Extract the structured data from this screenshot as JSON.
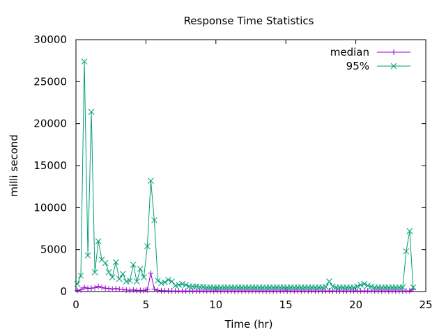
{
  "chart_data": {
    "type": "line",
    "title": "Response Time Statistics",
    "xlabel": "Time (hr)",
    "ylabel": "milli second",
    "xlim": [
      0,
      25
    ],
    "ylim": [
      0,
      30000
    ],
    "xticks": [
      0,
      5,
      10,
      15,
      20,
      25
    ],
    "yticks": [
      0,
      5000,
      10000,
      15000,
      20000,
      25000,
      30000
    ],
    "grid": false,
    "legend": "top-right",
    "series": [
      {
        "name": "median",
        "color": "#9400d3",
        "marker": "plus",
        "points": [
          [
            0.1,
            120
          ],
          [
            0.35,
            200
          ],
          [
            0.6,
            500
          ],
          [
            0.85,
            380
          ],
          [
            1.1,
            400
          ],
          [
            1.35,
            450
          ],
          [
            1.6,
            600
          ],
          [
            1.85,
            480
          ],
          [
            2.1,
            400
          ],
          [
            2.35,
            350
          ],
          [
            2.6,
            300
          ],
          [
            2.85,
            350
          ],
          [
            3.1,
            280
          ],
          [
            3.35,
            250
          ],
          [
            3.6,
            180
          ],
          [
            3.85,
            150
          ],
          [
            4.1,
            200
          ],
          [
            4.35,
            120
          ],
          [
            4.6,
            150
          ],
          [
            4.85,
            120
          ],
          [
            5.1,
            200
          ],
          [
            5.35,
            2200
          ],
          [
            5.6,
            300
          ],
          [
            5.85,
            150
          ],
          [
            6.1,
            100
          ],
          [
            6.35,
            90
          ],
          [
            6.6,
            80
          ],
          [
            6.85,
            70
          ],
          [
            7.1,
            60
          ],
          [
            7.35,
            60
          ],
          [
            7.6,
            60
          ],
          [
            7.85,
            60
          ],
          [
            8.1,
            60
          ],
          [
            8.35,
            60
          ],
          [
            8.6,
            60
          ],
          [
            8.85,
            60
          ],
          [
            9.1,
            60
          ],
          [
            9.35,
            60
          ],
          [
            9.6,
            60
          ],
          [
            9.85,
            60
          ],
          [
            10.1,
            60
          ],
          [
            10.35,
            60
          ],
          [
            10.6,
            60
          ],
          [
            10.85,
            60
          ],
          [
            11.1,
            60
          ],
          [
            11.35,
            60
          ],
          [
            11.6,
            60
          ],
          [
            11.85,
            60
          ],
          [
            12.1,
            60
          ],
          [
            12.35,
            60
          ],
          [
            12.6,
            60
          ],
          [
            12.85,
            60
          ],
          [
            13.1,
            60
          ],
          [
            13.35,
            60
          ],
          [
            13.6,
            60
          ],
          [
            13.85,
            60
          ],
          [
            14.1,
            60
          ],
          [
            14.35,
            60
          ],
          [
            14.6,
            60
          ],
          [
            14.85,
            60
          ],
          [
            15.1,
            60
          ],
          [
            15.35,
            60
          ],
          [
            15.6,
            60
          ],
          [
            15.85,
            60
          ],
          [
            16.1,
            60
          ],
          [
            16.35,
            60
          ],
          [
            16.6,
            60
          ],
          [
            16.85,
            60
          ],
          [
            17.1,
            60
          ],
          [
            17.35,
            60
          ],
          [
            17.6,
            60
          ],
          [
            17.85,
            60
          ],
          [
            18.1,
            80
          ],
          [
            18.35,
            60
          ],
          [
            18.6,
            60
          ],
          [
            18.85,
            60
          ],
          [
            19.1,
            60
          ],
          [
            19.35,
            60
          ],
          [
            19.6,
            60
          ],
          [
            19.85,
            60
          ],
          [
            20.1,
            60
          ],
          [
            20.35,
            70
          ],
          [
            20.6,
            80
          ],
          [
            20.85,
            70
          ],
          [
            21.1,
            60
          ],
          [
            21.35,
            60
          ],
          [
            21.6,
            60
          ],
          [
            21.85,
            60
          ],
          [
            22.1,
            60
          ],
          [
            22.35,
            60
          ],
          [
            22.6,
            60
          ],
          [
            22.85,
            60
          ],
          [
            23.1,
            60
          ],
          [
            23.35,
            60
          ],
          [
            23.6,
            60
          ],
          [
            23.85,
            80
          ],
          [
            24.1,
            300
          ]
        ]
      },
      {
        "name": "95%",
        "color": "#009e73",
        "marker": "cross",
        "points": [
          [
            0.1,
            900
          ],
          [
            0.35,
            1900
          ],
          [
            0.6,
            27400
          ],
          [
            0.85,
            4300
          ],
          [
            1.1,
            21400
          ],
          [
            1.35,
            2300
          ],
          [
            1.6,
            6000
          ],
          [
            1.85,
            3800
          ],
          [
            2.1,
            3400
          ],
          [
            2.35,
            2300
          ],
          [
            2.6,
            1700
          ],
          [
            2.85,
            3500
          ],
          [
            3.1,
            1500
          ],
          [
            3.35,
            2100
          ],
          [
            3.6,
            1200
          ],
          [
            3.85,
            1300
          ],
          [
            4.1,
            3200
          ],
          [
            4.35,
            1200
          ],
          [
            4.6,
            2700
          ],
          [
            4.85,
            1700
          ],
          [
            5.1,
            5400
          ],
          [
            5.35,
            13200
          ],
          [
            5.6,
            8500
          ],
          [
            5.85,
            1300
          ],
          [
            6.1,
            1000
          ],
          [
            6.35,
            1100
          ],
          [
            6.6,
            1400
          ],
          [
            6.85,
            1200
          ],
          [
            7.1,
            700
          ],
          [
            7.35,
            800
          ],
          [
            7.6,
            900
          ],
          [
            7.85,
            800
          ],
          [
            8.1,
            600
          ],
          [
            8.35,
            600
          ],
          [
            8.6,
            600
          ],
          [
            8.85,
            550
          ],
          [
            9.1,
            550
          ],
          [
            9.35,
            500
          ],
          [
            9.6,
            500
          ],
          [
            9.85,
            500
          ],
          [
            10.1,
            500
          ],
          [
            10.35,
            500
          ],
          [
            10.6,
            500
          ],
          [
            10.85,
            500
          ],
          [
            11.1,
            500
          ],
          [
            11.35,
            500
          ],
          [
            11.6,
            500
          ],
          [
            11.85,
            500
          ],
          [
            12.1,
            500
          ],
          [
            12.35,
            500
          ],
          [
            12.6,
            500
          ],
          [
            12.85,
            500
          ],
          [
            13.1,
            500
          ],
          [
            13.35,
            500
          ],
          [
            13.6,
            500
          ],
          [
            13.85,
            500
          ],
          [
            14.1,
            500
          ],
          [
            14.35,
            500
          ],
          [
            14.6,
            500
          ],
          [
            14.85,
            500
          ],
          [
            15.1,
            500
          ],
          [
            15.35,
            500
          ],
          [
            15.6,
            500
          ],
          [
            15.85,
            500
          ],
          [
            16.1,
            500
          ],
          [
            16.35,
            500
          ],
          [
            16.6,
            500
          ],
          [
            16.85,
            500
          ],
          [
            17.1,
            500
          ],
          [
            17.35,
            500
          ],
          [
            17.6,
            500
          ],
          [
            17.85,
            550
          ],
          [
            18.1,
            1200
          ],
          [
            18.35,
            600
          ],
          [
            18.6,
            500
          ],
          [
            18.85,
            500
          ],
          [
            19.1,
            500
          ],
          [
            19.35,
            500
          ],
          [
            19.6,
            500
          ],
          [
            19.85,
            500
          ],
          [
            20.1,
            600
          ],
          [
            20.35,
            800
          ],
          [
            20.6,
            900
          ],
          [
            20.85,
            700
          ],
          [
            21.1,
            600
          ],
          [
            21.35,
            500
          ],
          [
            21.6,
            500
          ],
          [
            21.85,
            500
          ],
          [
            22.1,
            500
          ],
          [
            22.35,
            500
          ],
          [
            22.6,
            500
          ],
          [
            22.85,
            500
          ],
          [
            23.1,
            500
          ],
          [
            23.35,
            500
          ],
          [
            23.6,
            4800
          ],
          [
            23.85,
            7200
          ],
          [
            24.1,
            500
          ]
        ]
      }
    ]
  }
}
